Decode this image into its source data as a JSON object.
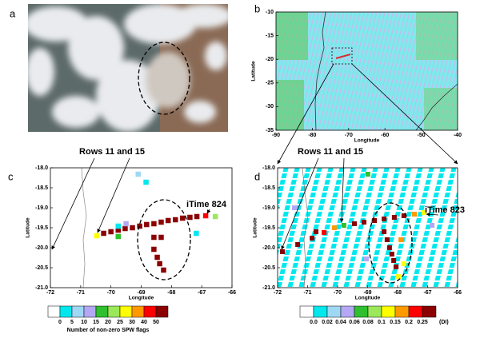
{
  "chart_data": [
    {
      "type": "image",
      "panel": "a"
    },
    {
      "type": "map",
      "panel": "b",
      "xlabel": "Longitude",
      "ylabel": "Latitude",
      "xlim": [
        -90,
        -40
      ],
      "xticks": [
        -90,
        -80,
        -70,
        -60,
        -50,
        -40
      ],
      "ylim": [
        -35,
        -10
      ],
      "yticks": [
        -10,
        -15,
        -20,
        -25,
        -30,
        -35
      ]
    },
    {
      "type": "scatter",
      "panel": "c",
      "xlabel": "Longitude",
      "ylabel": "Latitude",
      "annotations": [
        "Rows 11 and 15",
        "iTime 824"
      ],
      "xlim": [
        -72,
        -66
      ],
      "xticks": [
        -72,
        -71,
        -70,
        -69,
        -68,
        -67,
        -66
      ],
      "ylim": [
        -21,
        -18
      ],
      "yticks": [
        {
          "value": -18,
          "label": "-18.0"
        },
        -18.5,
        {
          "value": -19,
          "label": "-19.0"
        },
        -19.5,
        {
          "value": -20,
          "label": "-20.0"
        },
        -20.5,
        {
          "value": -21,
          "label": "-21.0"
        }
      ],
      "x": [
        -70.47,
        -70.24,
        -70.0,
        -69.76,
        -69.53,
        -69.29,
        -69.05,
        -68.82,
        -68.58,
        -68.34,
        -68.11,
        -67.87,
        -67.63,
        -67.39,
        -67.16,
        -66.87,
        -69.76,
        -69.76,
        -69.5,
        -68.58,
        -68.34,
        -68.58,
        -68.47,
        -68.39,
        -68.26,
        -69.1,
        -68.84,
        -66.55,
        -67.18
      ],
      "y": [
        -19.7,
        -19.64,
        -19.6,
        -19.56,
        -19.52,
        -19.5,
        -19.46,
        -19.42,
        -19.4,
        -19.36,
        -19.32,
        -19.3,
        -19.26,
        -19.24,
        -19.22,
        -19.2,
        -19.72,
        -19.46,
        -19.4,
        -19.74,
        -19.74,
        -20.04,
        -20.24,
        -20.4,
        -20.56,
        -18.16,
        -18.36,
        -19.22,
        -19.64
      ],
      "values": [
        27,
        50,
        50,
        50,
        50,
        50,
        50,
        50,
        50,
        50,
        50,
        50,
        50,
        50,
        50,
        42,
        17,
        3,
        12,
        50,
        50,
        50,
        50,
        50,
        50,
        7,
        3,
        22,
        3
      ],
      "colorbar": {
        "label": "Number of non-zero SPW flags",
        "ticks": [
          0,
          5,
          10,
          15,
          20,
          25,
          30,
          40,
          50
        ],
        "colors": [
          "#ffffff",
          "#00e8ee",
          "#9fd8f5",
          "#b4a8f5",
          "#2fbf2f",
          "#9be85a",
          "#ffff00",
          "#ff9900",
          "#ff0000",
          "#8b0000"
        ]
      }
    },
    {
      "type": "scatter",
      "panel": "d",
      "xlabel": "Longitude",
      "ylabel": "Latitude",
      "annotations": [
        "Rows 11 and 15",
        "iTime 823"
      ],
      "xlim": [
        -72,
        -66
      ],
      "xticks": [
        -72,
        -71,
        -70,
        -69,
        -68,
        -67,
        -66
      ],
      "ylim": [
        -21,
        -18
      ],
      "yticks": [
        {
          "value": -18,
          "label": "-18.0"
        },
        -18.5,
        {
          "value": -19,
          "label": "-19.0"
        },
        -19.5,
        {
          "value": -20,
          "label": "-20.0"
        },
        -20.5,
        {
          "value": -21,
          "label": "-21.0"
        }
      ],
      "x": [
        -71.84,
        -71.33,
        -70.85,
        -70.45,
        -70.11,
        -69.79,
        -69.44,
        -69.12,
        -68.77,
        -68.45,
        -68.11,
        -67.79,
        -67.44,
        -67.12,
        -70.72,
        -68.45,
        -68.35,
        -68.27,
        -68.19,
        -68.13,
        -68.05,
        -67.79,
        -67.97,
        -67.89,
        -69.04,
        -71.44,
        -66.85,
        -68.99
      ],
      "y": [
        -20.1,
        -19.92,
        -19.76,
        -19.62,
        -19.5,
        -19.44,
        -19.4,
        -19.36,
        -19.32,
        -19.28,
        -19.24,
        -19.2,
        -19.16,
        -19.12,
        -19.6,
        -19.6,
        -19.8,
        -20.0,
        -20.16,
        -20.32,
        -20.48,
        -20.4,
        -20.72,
        -19.8,
        -20.28,
        -19.0,
        -19.44,
        -18.16
      ],
      "values": [
        0.3,
        0.3,
        0.3,
        0.22,
        0.17,
        0.07,
        0.3,
        0.3,
        0.3,
        0.3,
        0.3,
        0.3,
        0.17,
        0.12,
        0.3,
        0.3,
        0.3,
        0.3,
        0.3,
        0.3,
        0.3,
        0.12,
        0.12,
        0.17,
        0.05,
        0.05,
        0.05,
        0.07
      ],
      "colorbar": {
        "unit": "(DI)",
        "ticks": [
          {
            "value": 0,
            "label": "0.0"
          },
          0.02,
          0.04,
          0.06,
          0.08,
          0.1,
          0.15,
          0.2,
          0.25
        ],
        "colors": [
          "#ffffff",
          "#00e8ee",
          "#9fd8f5",
          "#b4a8f5",
          "#2fbf2f",
          "#9be85a",
          "#ffff00",
          "#ff9900",
          "#ff0000",
          "#8b0000"
        ]
      }
    }
  ]
}
